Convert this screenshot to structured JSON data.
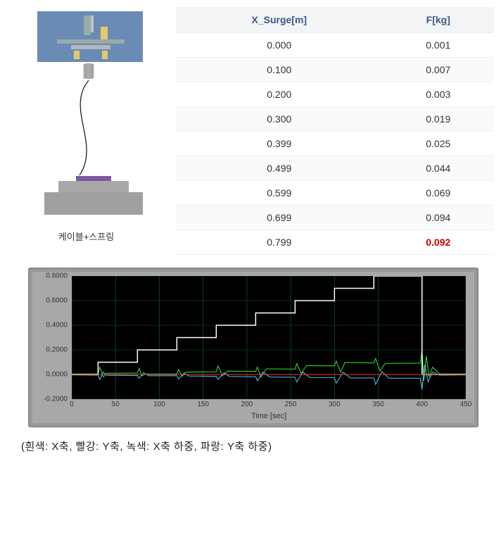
{
  "diagram": {
    "caption": "케이블+스프링"
  },
  "table": {
    "columns": [
      "X_Surge[m]",
      "F[kg]"
    ],
    "rows": [
      [
        "0.000",
        "0.001"
      ],
      [
        "0.100",
        "0.007"
      ],
      [
        "0.200",
        "0.003"
      ],
      [
        "0.300",
        "0.019"
      ],
      [
        "0.399",
        "0.025"
      ],
      [
        "0.499",
        "0.044"
      ],
      [
        "0.599",
        "0.069"
      ],
      [
        "0.699",
        "0.094"
      ],
      [
        "0.799",
        "0.092"
      ]
    ],
    "highlight_row": 8,
    "highlight_col": 1,
    "header_bg": "#f2f4f6",
    "header_color": "#3c5a85",
    "highlight_color": "#d00000"
  },
  "chart": {
    "type": "line",
    "background_color": "#000000",
    "grid_color": "#0a6a2a",
    "panel_color": "#a8a8a8",
    "xlabel": "Time [sec]",
    "xlim": [
      0,
      450
    ],
    "xtick_step": 50,
    "ylim": [
      -0.2,
      0.8
    ],
    "ytick_step": 0.2,
    "y_tick_format": "0.0000",
    "series": {
      "white": {
        "label": "X축",
        "color": "#ffffff",
        "width": 1.5,
        "data": [
          [
            0,
            0
          ],
          [
            30,
            0
          ],
          [
            30,
            0.1
          ],
          [
            75,
            0.1
          ],
          [
            75,
            0.2
          ],
          [
            120,
            0.2
          ],
          [
            120,
            0.3
          ],
          [
            165,
            0.3
          ],
          [
            165,
            0.4
          ],
          [
            210,
            0.4
          ],
          [
            210,
            0.5
          ],
          [
            255,
            0.5
          ],
          [
            255,
            0.6
          ],
          [
            300,
            0.6
          ],
          [
            300,
            0.7
          ],
          [
            345,
            0.7
          ],
          [
            345,
            0.8
          ],
          [
            400,
            0.8
          ],
          [
            400,
            0
          ],
          [
            450,
            0
          ]
        ]
      },
      "red": {
        "label": "Y축",
        "color": "#ff3030",
        "width": 1,
        "data": [
          [
            0,
            0
          ],
          [
            450,
            0
          ]
        ]
      },
      "green": {
        "label": "X축 하중",
        "color": "#30e830",
        "width": 1,
        "data": [
          [
            0,
            0.005
          ],
          [
            30,
            0.005
          ],
          [
            32,
            0.06
          ],
          [
            36,
            -0.02
          ],
          [
            40,
            0.01
          ],
          [
            75,
            0.012
          ],
          [
            77,
            0.05
          ],
          [
            80,
            -0.01
          ],
          [
            85,
            0.004
          ],
          [
            120,
            0.005
          ],
          [
            122,
            0.04
          ],
          [
            126,
            -0.015
          ],
          [
            130,
            0.02
          ],
          [
            165,
            0.022
          ],
          [
            167,
            0.07
          ],
          [
            172,
            -0.01
          ],
          [
            178,
            0.028
          ],
          [
            210,
            0.026
          ],
          [
            212,
            0.06
          ],
          [
            216,
            -0.02
          ],
          [
            222,
            0.046
          ],
          [
            255,
            0.044
          ],
          [
            257,
            0.09
          ],
          [
            262,
            0.01
          ],
          [
            268,
            0.072
          ],
          [
            300,
            0.07
          ],
          [
            302,
            0.11
          ],
          [
            307,
            0.02
          ],
          [
            312,
            0.098
          ],
          [
            345,
            0.095
          ],
          [
            347,
            0.13
          ],
          [
            352,
            0.03
          ],
          [
            358,
            0.09
          ],
          [
            398,
            0.093
          ],
          [
            400,
            0.2
          ],
          [
            402,
            -0.05
          ],
          [
            405,
            0.15
          ],
          [
            408,
            -0.02
          ],
          [
            412,
            0.06
          ],
          [
            420,
            0.005
          ],
          [
            450,
            0.005
          ]
        ]
      },
      "blue": {
        "label": "Y축 하중",
        "color": "#4ac8ff",
        "width": 1,
        "data": [
          [
            0,
            -0.003
          ],
          [
            30,
            -0.005
          ],
          [
            32,
            -0.04
          ],
          [
            36,
            0.02
          ],
          [
            40,
            -0.006
          ],
          [
            75,
            -0.008
          ],
          [
            77,
            -0.03
          ],
          [
            82,
            0.015
          ],
          [
            88,
            -0.01
          ],
          [
            120,
            -0.01
          ],
          [
            122,
            -0.035
          ],
          [
            128,
            0.01
          ],
          [
            134,
            -0.012
          ],
          [
            165,
            -0.014
          ],
          [
            167,
            -0.04
          ],
          [
            174,
            0.015
          ],
          [
            180,
            -0.016
          ],
          [
            210,
            -0.018
          ],
          [
            212,
            -0.05
          ],
          [
            218,
            0.02
          ],
          [
            226,
            -0.02
          ],
          [
            255,
            -0.022
          ],
          [
            257,
            -0.06
          ],
          [
            264,
            0.02
          ],
          [
            272,
            -0.024
          ],
          [
            300,
            -0.025
          ],
          [
            302,
            -0.07
          ],
          [
            310,
            0.02
          ],
          [
            318,
            -0.028
          ],
          [
            345,
            -0.028
          ],
          [
            347,
            -0.08
          ],
          [
            354,
            0.025
          ],
          [
            362,
            -0.03
          ],
          [
            398,
            -0.03
          ],
          [
            400,
            -0.12
          ],
          [
            403,
            0.08
          ],
          [
            407,
            -0.06
          ],
          [
            412,
            0.02
          ],
          [
            420,
            -0.005
          ],
          [
            450,
            -0.003
          ]
        ]
      }
    }
  },
  "chart_caption": "(흰색: X축, 빨강: Y축, 녹색: X축 하중, 파랑: Y축 하중)"
}
